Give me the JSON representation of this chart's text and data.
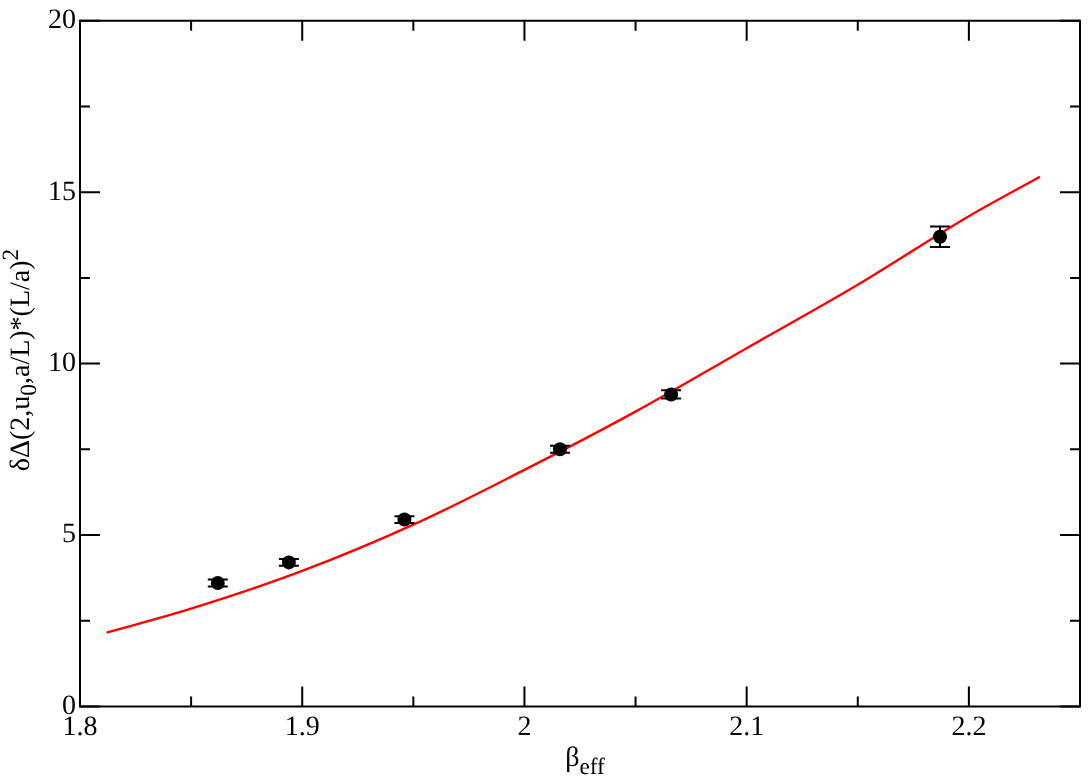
{
  "chart_data": {
    "type": "scatter",
    "xlabel": "β$_{eff}$",
    "ylabel": "δΔ(2,u$_{0}$,a/L)*(L/a)$^{2}$",
    "xlim": [
      1.8,
      2.25
    ],
    "xticks": [
      1.8,
      {
        "value": 1.85,
        "label": null
      },
      1.9,
      {
        "value": 1.95,
        "label": null
      },
      2,
      {
        "value": 2.05,
        "label": null
      },
      2.1,
      {
        "value": 2.15,
        "label": null
      },
      2.2
    ],
    "ylim": [
      0,
      20
    ],
    "yticks": [
      0,
      {
        "value": 2.5,
        "label": null
      },
      5,
      {
        "value": 7.5,
        "label": null
      },
      10,
      {
        "value": 12.5,
        "label": null
      },
      15,
      {
        "value": 17.5,
        "label": null
      },
      20
    ],
    "grid": false,
    "legend": false,
    "series": [
      {
        "color": "#000000",
        "marker": "circle",
        "x": [
          1.862,
          1.894,
          1.946,
          2.016,
          2.066,
          2.187
        ],
        "values": [
          3.6,
          4.2,
          5.45,
          7.5,
          9.1,
          13.7
        ],
        "errors": [
          0.1,
          0.1,
          0.1,
          0.1,
          0.12,
          0.3
        ]
      },
      {
        "type": "line",
        "color": "#ff0000",
        "marker": "none",
        "line_style": "solid",
        "x": [
          1.812,
          1.85,
          1.9,
          1.95,
          2.0,
          2.05,
          2.1,
          2.15,
          2.2,
          2.232
        ],
        "values": [
          2.15,
          2.85,
          3.95,
          5.3,
          6.9,
          8.6,
          10.45,
          12.3,
          14.3,
          15.45
        ]
      }
    ]
  }
}
